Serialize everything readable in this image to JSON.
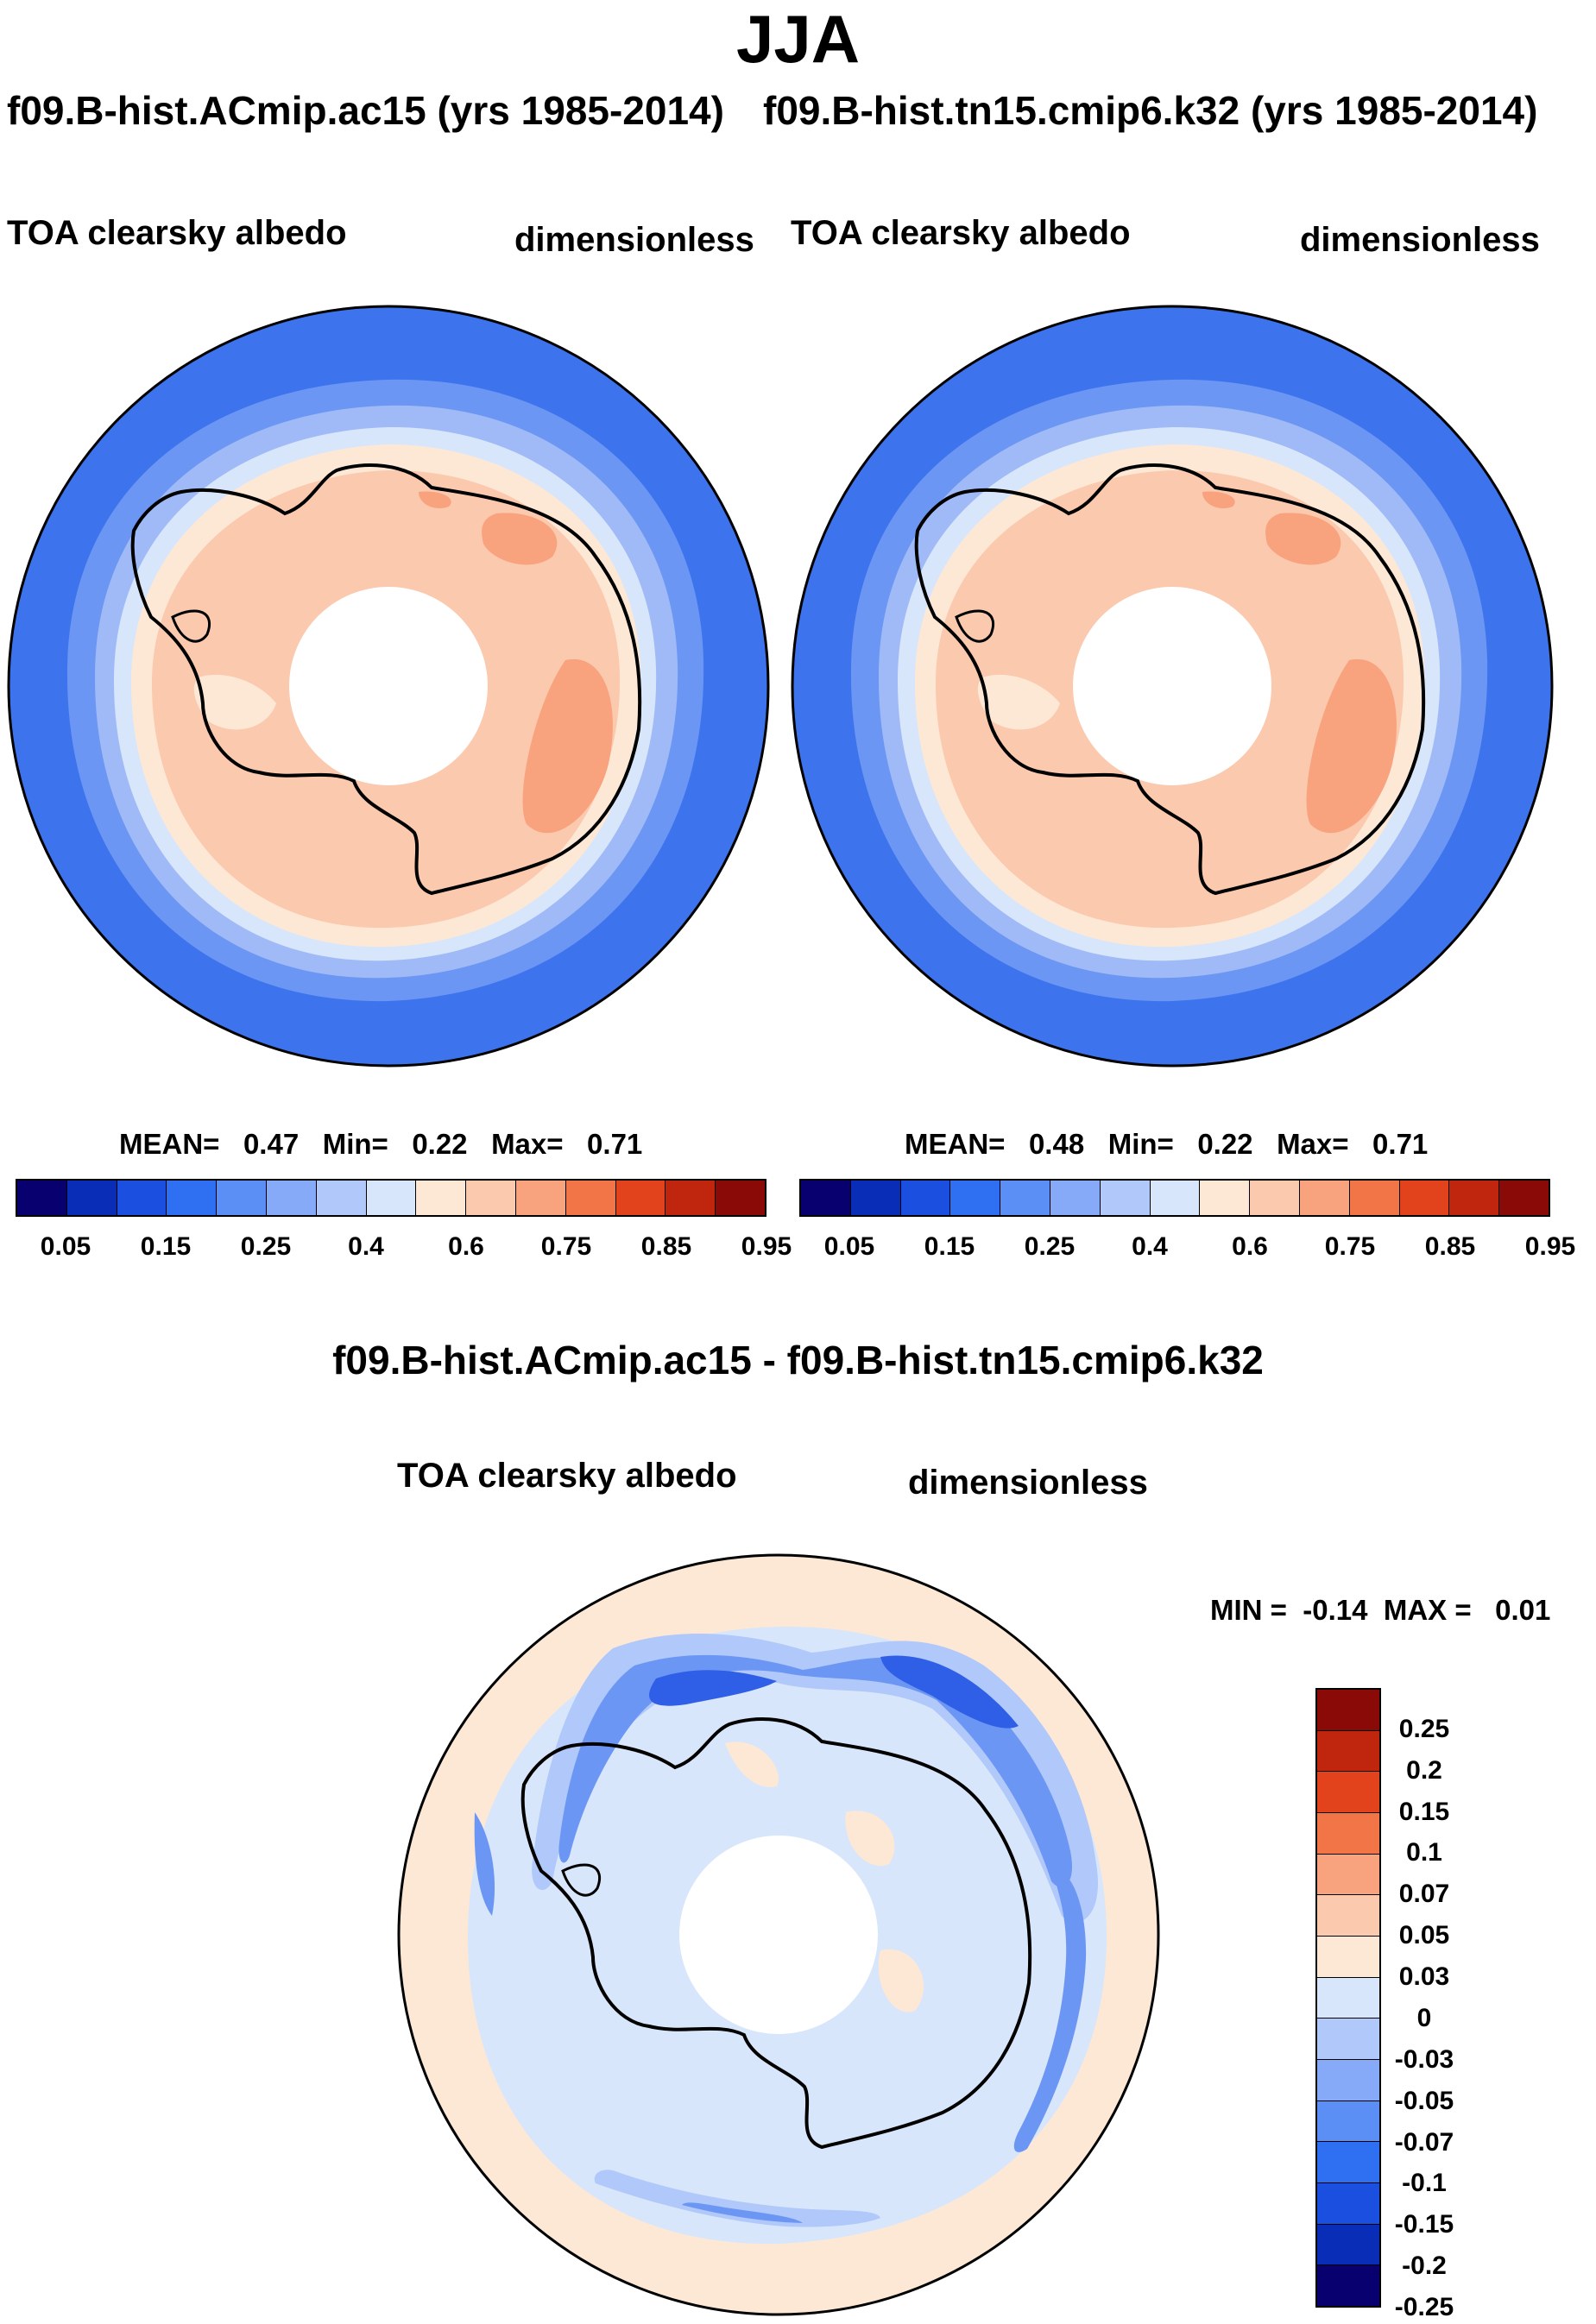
{
  "figure": {
    "season": "JJA"
  },
  "left_panel": {
    "run_title": "f09.B-hist.ACmip.ac15 (yrs 1985-2014)",
    "variable": "TOA clearsky albedo",
    "units": "dimensionless",
    "mean_label": "MEAN=",
    "mean_value": "0.47",
    "min_label": "Min=",
    "min_value": "0.22",
    "max_label": "Max=",
    "max_value": "0.71"
  },
  "right_panel": {
    "run_title": "f09.B-hist.tn15.cmip6.k32 (yrs 1985-2014)",
    "variable": "TOA clearsky albedo",
    "units": "dimensionless",
    "mean_label": "MEAN=",
    "mean_value": "0.48",
    "min_label": "Min=",
    "min_value": "0.22",
    "max_label": "Max=",
    "max_value": "0.71"
  },
  "diff_panel": {
    "title": "f09.B-hist.ACmip.ac15 - f09.B-hist.tn15.cmip6.k32",
    "variable": "TOA clearsky albedo",
    "units": "dimensionless",
    "min_label": "MIN =",
    "min_value": "-0.14",
    "max_label": "MAX =",
    "max_value": "0.01"
  },
  "colorbar_main": {
    "colors": [
      "#08006e",
      "#0a2db8",
      "#1a4fe0",
      "#2f6ff2",
      "#5b8ff5",
      "#86aaf7",
      "#b0c8fa",
      "#d8e6fb",
      "#fde8d6",
      "#fbc9ae",
      "#f8a27e",
      "#f27548",
      "#e2421c",
      "#c0260d",
      "#8a0a08"
    ],
    "ticks": [
      "0.05",
      "0.15",
      "0.25",
      "0.4",
      "0.6",
      "0.75",
      "0.85",
      "0.95"
    ],
    "tick_boundaries": [
      1,
      3,
      5,
      7,
      9,
      11,
      13,
      15
    ]
  },
  "colorbar_diff": {
    "colors": [
      "#08006e",
      "#0a2db8",
      "#1a4fe0",
      "#2f6ff2",
      "#5b8ff5",
      "#86aaf7",
      "#b0c8fa",
      "#d8e6fb",
      "#fde8d6",
      "#fbc9ae",
      "#f8a27e",
      "#f27548",
      "#e2421c",
      "#c0260d",
      "#8a0a08"
    ],
    "ticks": [
      "0.25",
      "0.2",
      "0.15",
      "0.1",
      "0.07",
      "0.05",
      "0.03",
      "0",
      "-0.03",
      "-0.05",
      "-0.07",
      "-0.1",
      "-0.15",
      "-0.2",
      "-0.25"
    ]
  },
  "map_colors": {
    "ocean_deep": "#3d74ee",
    "ocean_mid": "#6c96f3",
    "ocean_light": "#9fbaf6",
    "ocean_pale": "#d8e6fb",
    "seaice": "#fde8d6",
    "land": "#fbc9ae",
    "plateau": "#f8a27e",
    "diff_pos": "#fde8d6",
    "diff_neg1": "#d8e6fb",
    "diff_neg2": "#b0c8fa",
    "diff_neg3": "#6c96f3",
    "diff_neg4": "#2f5fe6"
  }
}
